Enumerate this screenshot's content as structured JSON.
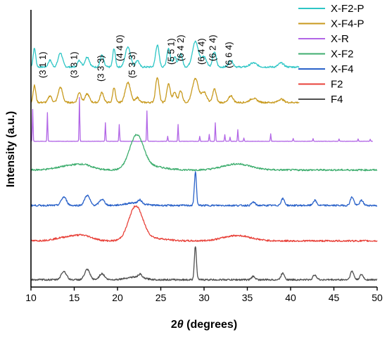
{
  "chart_data": {
    "type": "line",
    "title": "",
    "xlabel": "2θ (degrees)",
    "ylabel": "Intensity (a.u.)",
    "xlim": [
      10,
      50
    ],
    "xticks": [
      10,
      15,
      20,
      25,
      30,
      35,
      40,
      45,
      50
    ],
    "yticks_shown": false,
    "legend_position": "top-right",
    "legend": [
      "X-F2-P",
      "X-F4-P",
      "X-R",
      "X-F2",
      "X-F4",
      "F2",
      "F4"
    ],
    "series": [
      {
        "name": "X-F2-P",
        "color": "#2ec6c6",
        "offset": 6.3,
        "baseline": 0.05,
        "x_range": [
          10,
          41
        ],
        "peaks": [
          [
            10.4,
            0.55,
            0.15
          ],
          [
            12.2,
            0.2,
            0.2
          ],
          [
            13.4,
            0.42,
            0.25
          ],
          [
            15.6,
            0.2,
            0.2
          ],
          [
            16.5,
            0.3,
            0.25
          ],
          [
            18.2,
            0.35,
            0.2
          ],
          [
            19.6,
            0.55,
            0.15
          ],
          [
            21.2,
            0.6,
            0.3
          ],
          [
            22.3,
            0.2,
            0.2
          ],
          [
            24.6,
            0.65,
            0.2
          ],
          [
            25.9,
            0.55,
            0.2
          ],
          [
            26.6,
            0.3,
            0.2
          ],
          [
            27.3,
            0.4,
            0.2
          ],
          [
            29.0,
            0.75,
            0.35
          ],
          [
            30.0,
            0.3,
            0.3
          ],
          [
            31.2,
            0.45,
            0.2
          ],
          [
            33.1,
            0.2,
            0.25
          ],
          [
            35.7,
            0.12,
            0.4
          ],
          [
            38.9,
            0.12,
            0.3
          ]
        ]
      },
      {
        "name": "X-F4-P",
        "color": "#c89a1e",
        "offset": 5.25,
        "baseline": 0.05,
        "x_range": [
          10,
          41
        ],
        "peaks": [
          [
            10.4,
            0.5,
            0.15
          ],
          [
            12.2,
            0.2,
            0.2
          ],
          [
            13.4,
            0.45,
            0.25
          ],
          [
            15.6,
            0.3,
            0.2
          ],
          [
            16.5,
            0.25,
            0.25
          ],
          [
            18.2,
            0.3,
            0.2
          ],
          [
            19.6,
            0.45,
            0.15
          ],
          [
            21.2,
            0.6,
            0.3
          ],
          [
            22.3,
            0.15,
            0.2
          ],
          [
            24.6,
            0.75,
            0.2
          ],
          [
            25.9,
            0.55,
            0.2
          ],
          [
            26.6,
            0.3,
            0.2
          ],
          [
            27.3,
            0.35,
            0.2
          ],
          [
            29.0,
            0.7,
            0.35
          ],
          [
            30.0,
            0.3,
            0.3
          ],
          [
            31.2,
            0.4,
            0.2
          ],
          [
            33.1,
            0.2,
            0.25
          ],
          [
            35.7,
            0.12,
            0.4
          ],
          [
            38.9,
            0.1,
            0.3
          ]
        ]
      },
      {
        "name": "X-R",
        "color": "#b266e6",
        "offset": 4.15,
        "baseline": 0.0,
        "x_range": [
          10,
          49.5
        ],
        "peaks": [
          [
            10.2,
            0.95,
            0.04
          ],
          [
            11.9,
            0.85,
            0.04
          ],
          [
            15.6,
            1.3,
            0.04
          ],
          [
            18.6,
            0.55,
            0.04
          ],
          [
            20.2,
            0.5,
            0.04
          ],
          [
            23.4,
            0.9,
            0.04
          ],
          [
            25.8,
            0.15,
            0.04
          ],
          [
            27.0,
            0.5,
            0.04
          ],
          [
            29.5,
            0.15,
            0.04
          ],
          [
            30.6,
            0.2,
            0.04
          ],
          [
            31.3,
            0.55,
            0.04
          ],
          [
            32.4,
            0.2,
            0.04
          ],
          [
            33.0,
            0.12,
            0.04
          ],
          [
            33.9,
            0.35,
            0.04
          ],
          [
            34.6,
            0.1,
            0.04
          ],
          [
            37.7,
            0.22,
            0.04
          ],
          [
            40.3,
            0.08,
            0.04
          ],
          [
            42.6,
            0.08,
            0.04
          ],
          [
            45.6,
            0.07,
            0.04
          ],
          [
            47.8,
            0.07,
            0.04
          ],
          [
            49.2,
            0.06,
            0.04
          ]
        ]
      },
      {
        "name": "X-F2",
        "color": "#3fae6f",
        "offset": 3.25,
        "baseline": 0.05,
        "x_range": [
          10,
          50
        ],
        "peaks": [
          [
            14.5,
            0.12,
            1.5
          ],
          [
            16.2,
            0.1,
            1.0
          ],
          [
            22.2,
            1.0,
            0.8
          ],
          [
            24.0,
            0.1,
            1.5
          ],
          [
            33.8,
            0.18,
            1.6
          ]
        ]
      },
      {
        "name": "X-F4",
        "color": "#2a62c9",
        "offset": 2.2,
        "baseline": 0.05,
        "x_range": [
          10,
          50
        ],
        "peaks": [
          [
            13.8,
            0.25,
            0.3
          ],
          [
            16.5,
            0.3,
            0.3
          ],
          [
            18.2,
            0.18,
            0.3
          ],
          [
            22.0,
            0.08,
            1.0
          ],
          [
            22.6,
            0.1,
            0.2
          ],
          [
            29.0,
            1.0,
            0.12
          ],
          [
            35.7,
            0.1,
            0.2
          ],
          [
            39.1,
            0.2,
            0.2
          ],
          [
            42.8,
            0.15,
            0.2
          ],
          [
            47.1,
            0.25,
            0.2
          ],
          [
            48.2,
            0.15,
            0.2
          ]
        ]
      },
      {
        "name": "F2",
        "color": "#e8423a",
        "offset": 1.15,
        "baseline": 0.05,
        "x_range": [
          10,
          50
        ],
        "peaks": [
          [
            14.5,
            0.12,
            1.5
          ],
          [
            16.2,
            0.1,
            1.0
          ],
          [
            22.1,
            1.0,
            0.8
          ],
          [
            24.0,
            0.08,
            1.5
          ],
          [
            33.8,
            0.16,
            1.6
          ]
        ]
      },
      {
        "name": "F4",
        "color": "#505050",
        "offset": 0.0,
        "baseline": 0.05,
        "x_range": [
          10,
          50
        ],
        "peaks": [
          [
            13.8,
            0.25,
            0.3
          ],
          [
            16.5,
            0.3,
            0.3
          ],
          [
            18.2,
            0.18,
            0.3
          ],
          [
            22.0,
            0.08,
            1.0
          ],
          [
            22.6,
            0.1,
            0.2
          ],
          [
            29.0,
            1.0,
            0.12
          ],
          [
            35.7,
            0.1,
            0.2
          ],
          [
            39.1,
            0.2,
            0.2
          ],
          [
            42.8,
            0.15,
            0.2
          ],
          [
            47.1,
            0.25,
            0.2
          ],
          [
            48.2,
            0.15,
            0.2
          ]
        ]
      }
    ],
    "annotations": [
      {
        "text": "(3 1 1)",
        "x": 12.2,
        "level": 1
      },
      {
        "text": "(3 3 1)",
        "x": 15.8,
        "level": 1
      },
      {
        "text": "(3 3 3)",
        "x": 18.9,
        "level": 0
      },
      {
        "text": "(4 4 0)",
        "x": 20.3,
        "level": 1,
        "rotate": true
      },
      {
        "text": "(5 3 3)",
        "x": 22.5,
        "level": 1
      },
      {
        "text": "(5 5 1)",
        "x": 26.2,
        "level": 0,
        "rotate": true
      },
      {
        "text": "(6 4 2)",
        "x": 27.3,
        "level": 1,
        "rotate": true
      },
      {
        "text": "(6 4 4)",
        "x": 29.7,
        "level": 0,
        "rotate": true
      },
      {
        "text": "(6 2 4)",
        "x": 31.0,
        "level": 1,
        "rotate": true
      },
      {
        "text": "(6 6 4)",
        "x": 32.9,
        "level": 2,
        "rotate": true
      }
    ]
  }
}
